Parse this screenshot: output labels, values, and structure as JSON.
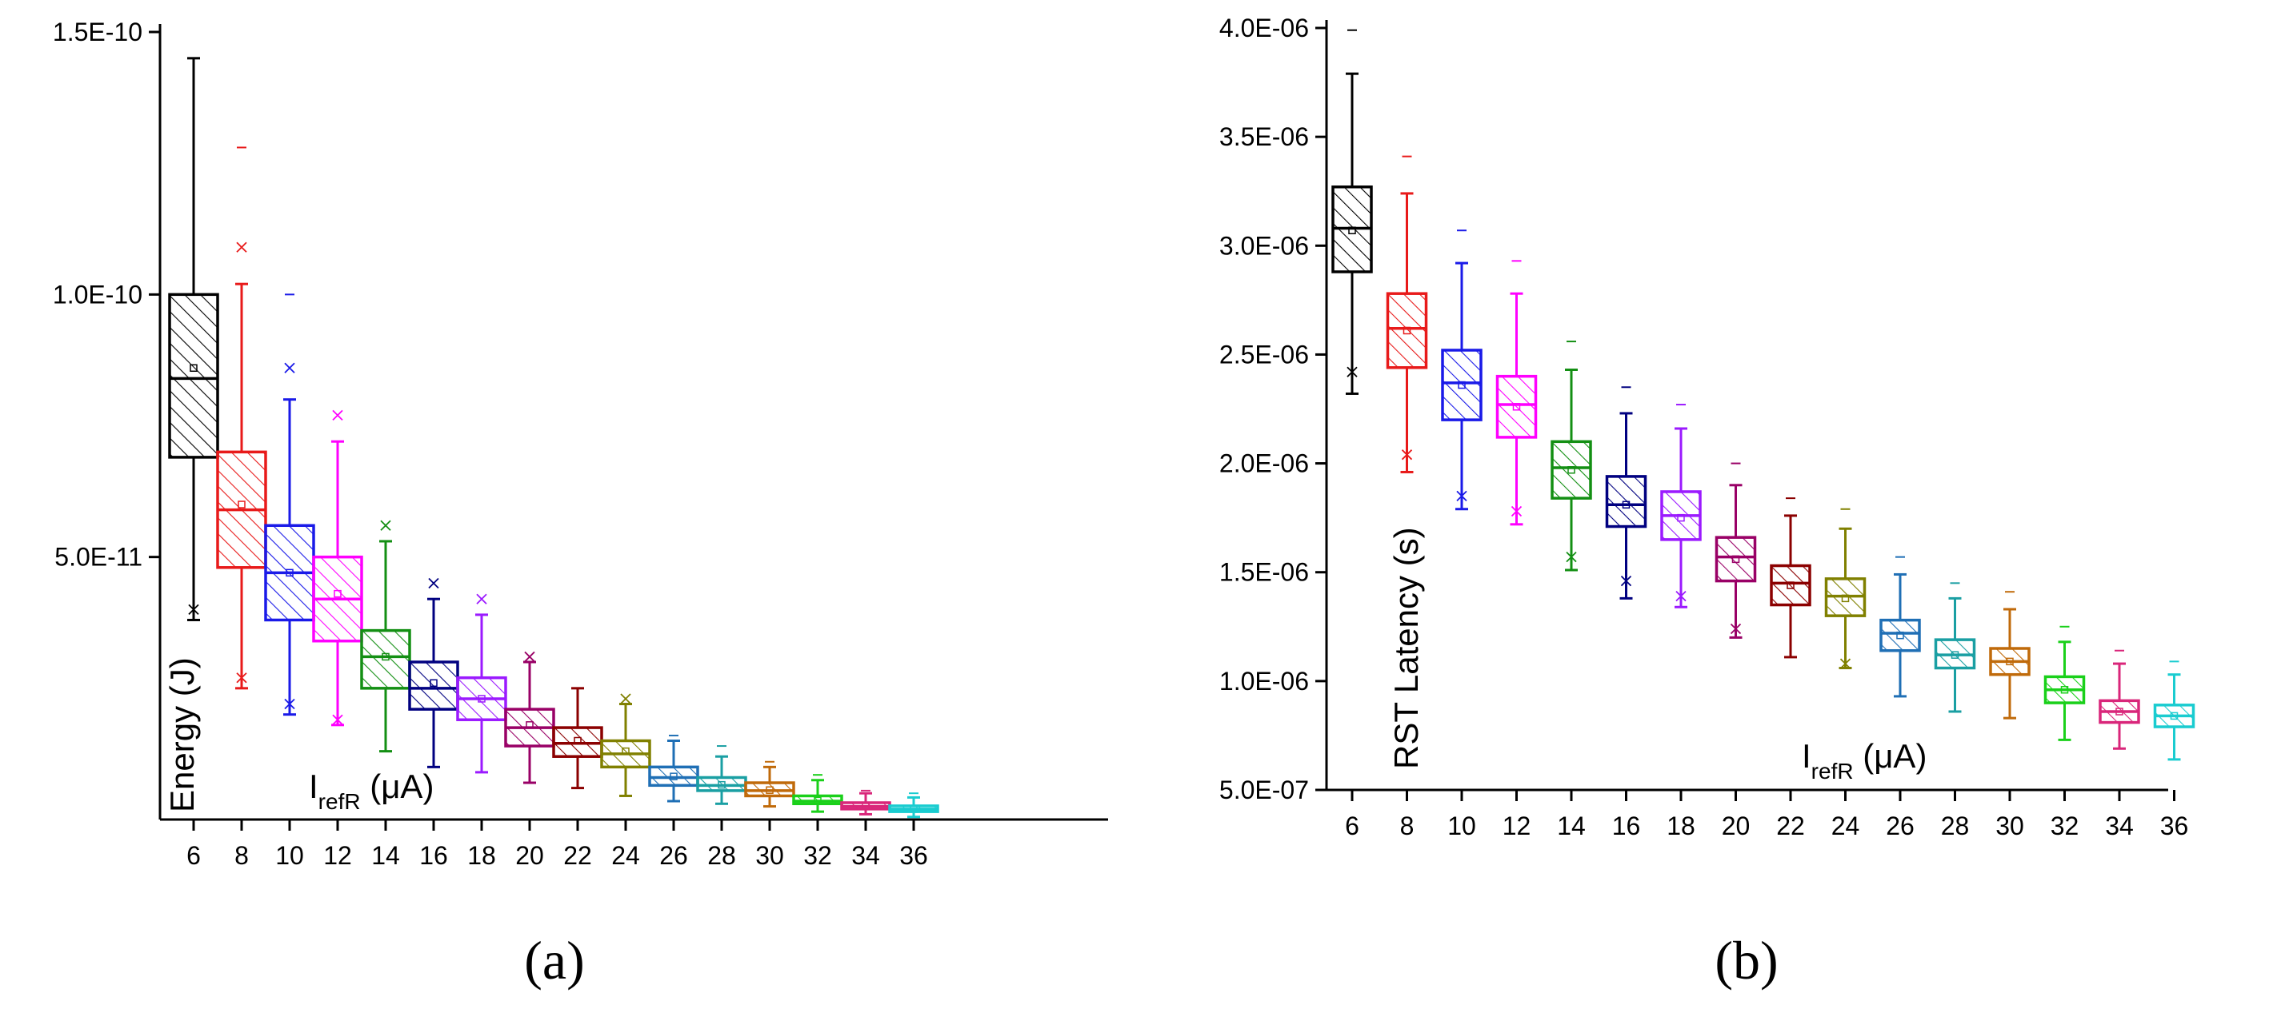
{
  "chart_data": [
    {
      "type": "box",
      "panel_label": "(a)",
      "ylabel": "Energy (J)",
      "xlabel": {
        "base": "I",
        "subscript": "refR",
        "unit": " (μA)"
      },
      "yticks": [
        {
          "value": 5e-11,
          "label": "5.0E-11"
        },
        {
          "value": 1e-10,
          "label": "1.0E-10"
        },
        {
          "value": 1.5e-10,
          "label": "1.5E-10"
        }
      ],
      "ylim": [
        0,
        1.5e-10
      ],
      "grid": false,
      "categories": [
        "6",
        "8",
        "10",
        "12",
        "14",
        "16",
        "18",
        "20",
        "22",
        "24",
        "26",
        "28",
        "30",
        "32",
        "34",
        "36"
      ],
      "series": [
        {
          "name": "6",
          "color": "#000000",
          "min": 3.8e-11,
          "q1": 6.9e-11,
          "median": 8.4e-11,
          "mean": 8.6e-11,
          "q3": 1e-10,
          "max": 1.45e-10,
          "out_high": null,
          "cross_high": null,
          "cross_low": 4e-11
        },
        {
          "name": "8",
          "color": "#e81a1a",
          "min": 2.5e-11,
          "q1": 4.8e-11,
          "median": 5.9e-11,
          "mean": 6e-11,
          "q3": 7e-11,
          "max": 1.02e-10,
          "out_high": 1.28e-10,
          "cross_high": 1.09e-10,
          "cross_low": 2.7e-11
        },
        {
          "name": "10",
          "color": "#1a1ae8",
          "min": 2e-11,
          "q1": 3.8e-11,
          "median": 4.7e-11,
          "mean": 4.7e-11,
          "q3": 5.6e-11,
          "max": 8e-11,
          "out_high": 1e-10,
          "cross_high": 8.6e-11,
          "cross_low": 2.2e-11
        },
        {
          "name": "12",
          "color": "#ff00ff",
          "min": 1.8e-11,
          "q1": 3.4e-11,
          "median": 4.2e-11,
          "mean": 4.3e-11,
          "q3": 5e-11,
          "max": 7.2e-11,
          "out_high": null,
          "cross_high": 7.7e-11,
          "cross_low": 1.9e-11
        },
        {
          "name": "14",
          "color": "#138f13",
          "min": 1.3e-11,
          "q1": 2.5e-11,
          "median": 3.1e-11,
          "mean": 3.1e-11,
          "q3": 3.6e-11,
          "max": 5.3e-11,
          "out_high": null,
          "cross_high": 5.6e-11,
          "cross_low": null
        },
        {
          "name": "16",
          "color": "#000080",
          "min": 1e-11,
          "q1": 2.1e-11,
          "median": 2.5e-11,
          "mean": 2.6e-11,
          "q3": 3e-11,
          "max": 4.2e-11,
          "out_high": null,
          "cross_high": 4.5e-11,
          "cross_low": null
        },
        {
          "name": "18",
          "color": "#9b1aff",
          "min": 9e-12,
          "q1": 1.9e-11,
          "median": 2.3e-11,
          "mean": 2.3e-11,
          "q3": 2.7e-11,
          "max": 3.9e-11,
          "out_high": null,
          "cross_high": 4.2e-11,
          "cross_low": null
        },
        {
          "name": "20",
          "color": "#990066",
          "min": 7e-12,
          "q1": 1.4e-11,
          "median": 1.75e-11,
          "mean": 1.8e-11,
          "q3": 2.1e-11,
          "max": 3e-11,
          "out_high": null,
          "cross_high": 3.1e-11,
          "cross_low": null
        },
        {
          "name": "22",
          "color": "#8b0000",
          "min": 6e-12,
          "q1": 1.2e-11,
          "median": 1.45e-11,
          "mean": 1.5e-11,
          "q3": 1.75e-11,
          "max": 2.5e-11,
          "out_high": null,
          "cross_high": null,
          "cross_low": null
        },
        {
          "name": "24",
          "color": "#808000",
          "min": 4.5e-12,
          "q1": 1e-11,
          "median": 1.25e-11,
          "mean": 1.3e-11,
          "q3": 1.5e-11,
          "max": 2.2e-11,
          "out_high": null,
          "cross_high": 2.3e-11,
          "cross_low": null
        },
        {
          "name": "26",
          "color": "#1f6fb5",
          "min": 3.5e-12,
          "q1": 6.5e-12,
          "median": 8e-12,
          "mean": 8.2e-12,
          "q3": 1e-11,
          "max": 1.5e-11,
          "out_high": 1.6e-11,
          "cross_high": null,
          "cross_low": null
        },
        {
          "name": "28",
          "color": "#1a9fa3",
          "min": 3e-12,
          "q1": 5.5e-12,
          "median": 6.5e-12,
          "mean": 6.6e-12,
          "q3": 8e-12,
          "max": 1.2e-11,
          "out_high": 1.4e-11,
          "cross_high": null,
          "cross_low": null
        },
        {
          "name": "30",
          "color": "#c06a0a",
          "min": 2.5e-12,
          "q1": 4.5e-12,
          "median": 5.5e-12,
          "mean": 5.6e-12,
          "q3": 7e-12,
          "max": 1e-11,
          "out_high": 1.1e-11,
          "cross_high": null,
          "cross_low": null
        },
        {
          "name": "32",
          "color": "#1ad01a",
          "min": 1.5e-12,
          "q1": 3e-12,
          "median": 3.5e-12,
          "mean": 3.6e-12,
          "q3": 4.5e-12,
          "max": 7.5e-12,
          "out_high": 8.5e-12,
          "cross_high": null,
          "cross_low": null
        },
        {
          "name": "34",
          "color": "#d9267a",
          "min": 1e-12,
          "q1": 2e-12,
          "median": 2.5e-12,
          "mean": 2.6e-12,
          "q3": 3.2e-12,
          "max": 5e-12,
          "out_high": 5.5e-12,
          "cross_high": null,
          "cross_low": null
        },
        {
          "name": "36",
          "color": "#1accd0",
          "min": 5e-13,
          "q1": 1.5e-12,
          "median": 2e-12,
          "mean": 2e-12,
          "q3": 2.6e-12,
          "max": 4.2e-12,
          "out_high": 5e-12,
          "cross_high": null,
          "cross_low": null
        }
      ]
    },
    {
      "type": "box",
      "panel_label": "(b)",
      "ylabel": "RST Latency (s)",
      "xlabel": {
        "base": "I",
        "subscript": "refR",
        "unit": " (μA)"
      },
      "yticks": [
        {
          "value": 5e-07,
          "label": "5.0E-07"
        },
        {
          "value": 1e-06,
          "label": "1.0E-06"
        },
        {
          "value": 1.5e-06,
          "label": "1.5E-06"
        },
        {
          "value": 2e-06,
          "label": "2.0E-06"
        },
        {
          "value": 2.5e-06,
          "label": "2.5E-06"
        },
        {
          "value": 3e-06,
          "label": "3.0E-06"
        },
        {
          "value": 3.5e-06,
          "label": "3.5E-06"
        },
        {
          "value": 4e-06,
          "label": "4.0E-06"
        }
      ],
      "ylim": [
        5e-07,
        4e-06
      ],
      "grid": false,
      "categories": [
        "6",
        "8",
        "10",
        "12",
        "14",
        "16",
        "18",
        "20",
        "22",
        "24",
        "26",
        "28",
        "30",
        "32",
        "34",
        "36"
      ],
      "series": [
        {
          "name": "6",
          "color": "#000000",
          "min": 2.32e-06,
          "q1": 2.88e-06,
          "median": 3.08e-06,
          "mean": 3.07e-06,
          "q3": 3.27e-06,
          "max": 3.79e-06,
          "out_high": 3.99e-06,
          "cross_high": null,
          "cross_low": 2.42e-06
        },
        {
          "name": "8",
          "color": "#e81a1a",
          "min": 1.96e-06,
          "q1": 2.44e-06,
          "median": 2.62e-06,
          "mean": 2.61e-06,
          "q3": 2.78e-06,
          "max": 3.24e-06,
          "out_high": 3.41e-06,
          "cross_high": null,
          "cross_low": 2.04e-06
        },
        {
          "name": "10",
          "color": "#1a1ae8",
          "min": 1.79e-06,
          "q1": 2.2e-06,
          "median": 2.37e-06,
          "mean": 2.36e-06,
          "q3": 2.52e-06,
          "max": 2.92e-06,
          "out_high": 3.07e-06,
          "cross_high": null,
          "cross_low": 1.85e-06
        },
        {
          "name": "12",
          "color": "#ff00ff",
          "min": 1.72e-06,
          "q1": 2.12e-06,
          "median": 2.27e-06,
          "mean": 2.26e-06,
          "q3": 2.4e-06,
          "max": 2.78e-06,
          "out_high": 2.93e-06,
          "cross_high": null,
          "cross_low": 1.78e-06
        },
        {
          "name": "14",
          "color": "#138f13",
          "min": 1.51e-06,
          "q1": 1.84e-06,
          "median": 1.98e-06,
          "mean": 1.97e-06,
          "q3": 2.1e-06,
          "max": 2.43e-06,
          "out_high": 2.56e-06,
          "cross_high": null,
          "cross_low": 1.57e-06
        },
        {
          "name": "16",
          "color": "#000080",
          "min": 1.38e-06,
          "q1": 1.71e-06,
          "median": 1.81e-06,
          "mean": 1.81e-06,
          "q3": 1.94e-06,
          "max": 2.23e-06,
          "out_high": 2.35e-06,
          "cross_high": null,
          "cross_low": 1.46e-06
        },
        {
          "name": "18",
          "color": "#9b1aff",
          "min": 1.34e-06,
          "q1": 1.65e-06,
          "median": 1.76e-06,
          "mean": 1.75e-06,
          "q3": 1.87e-06,
          "max": 2.16e-06,
          "out_high": 2.27e-06,
          "cross_high": null,
          "cross_low": 1.39e-06
        },
        {
          "name": "20",
          "color": "#990066",
          "min": 1.2e-06,
          "q1": 1.46e-06,
          "median": 1.57e-06,
          "mean": 1.56e-06,
          "q3": 1.66e-06,
          "max": 1.9e-06,
          "out_high": 2e-06,
          "cross_high": null,
          "cross_low": 1.24e-06
        },
        {
          "name": "22",
          "color": "#8b0000",
          "min": 1.11e-06,
          "q1": 1.35e-06,
          "median": 1.45e-06,
          "mean": 1.44e-06,
          "q3": 1.53e-06,
          "max": 1.76e-06,
          "out_high": 1.84e-06,
          "cross_high": null,
          "cross_low": null
        },
        {
          "name": "24",
          "color": "#808000",
          "min": 1.06e-06,
          "q1": 1.3e-06,
          "median": 1.39e-06,
          "mean": 1.38e-06,
          "q3": 1.47e-06,
          "max": 1.7e-06,
          "out_high": 1.79e-06,
          "cross_high": null,
          "cross_low": 1.08e-06
        },
        {
          "name": "26",
          "color": "#1f6fb5",
          "min": 9.3e-07,
          "q1": 1.14e-06,
          "median": 1.22e-06,
          "mean": 1.21e-06,
          "q3": 1.28e-06,
          "max": 1.49e-06,
          "out_high": 1.57e-06,
          "cross_high": null,
          "cross_low": null
        },
        {
          "name": "28",
          "color": "#1a9fa3",
          "min": 8.6e-07,
          "q1": 1.06e-06,
          "median": 1.12e-06,
          "mean": 1.12e-06,
          "q3": 1.19e-06,
          "max": 1.38e-06,
          "out_high": 1.45e-06,
          "cross_high": null,
          "cross_low": null
        },
        {
          "name": "30",
          "color": "#c06a0a",
          "min": 8.3e-07,
          "q1": 1.03e-06,
          "median": 1.09e-06,
          "mean": 1.09e-06,
          "q3": 1.15e-06,
          "max": 1.33e-06,
          "out_high": 1.41e-06,
          "cross_high": null,
          "cross_low": null
        },
        {
          "name": "32",
          "color": "#1ad01a",
          "min": 7.3e-07,
          "q1": 9e-07,
          "median": 9.6e-07,
          "mean": 9.6e-07,
          "q3": 1.02e-06,
          "max": 1.18e-06,
          "out_high": 1.25e-06,
          "cross_high": null,
          "cross_low": null
        },
        {
          "name": "34",
          "color": "#d9267a",
          "min": 6.9e-07,
          "q1": 8.1e-07,
          "median": 8.6e-07,
          "mean": 8.6e-07,
          "q3": 9.1e-07,
          "max": 1.08e-06,
          "out_high": 1.14e-06,
          "cross_high": null,
          "cross_low": null
        },
        {
          "name": "36",
          "color": "#1accd0",
          "min": 6.4e-07,
          "q1": 7.9e-07,
          "median": 8.4e-07,
          "mean": 8.4e-07,
          "q3": 8.9e-07,
          "max": 1.03e-06,
          "out_high": 1.09e-06,
          "cross_high": null,
          "cross_low": null
        }
      ]
    }
  ]
}
